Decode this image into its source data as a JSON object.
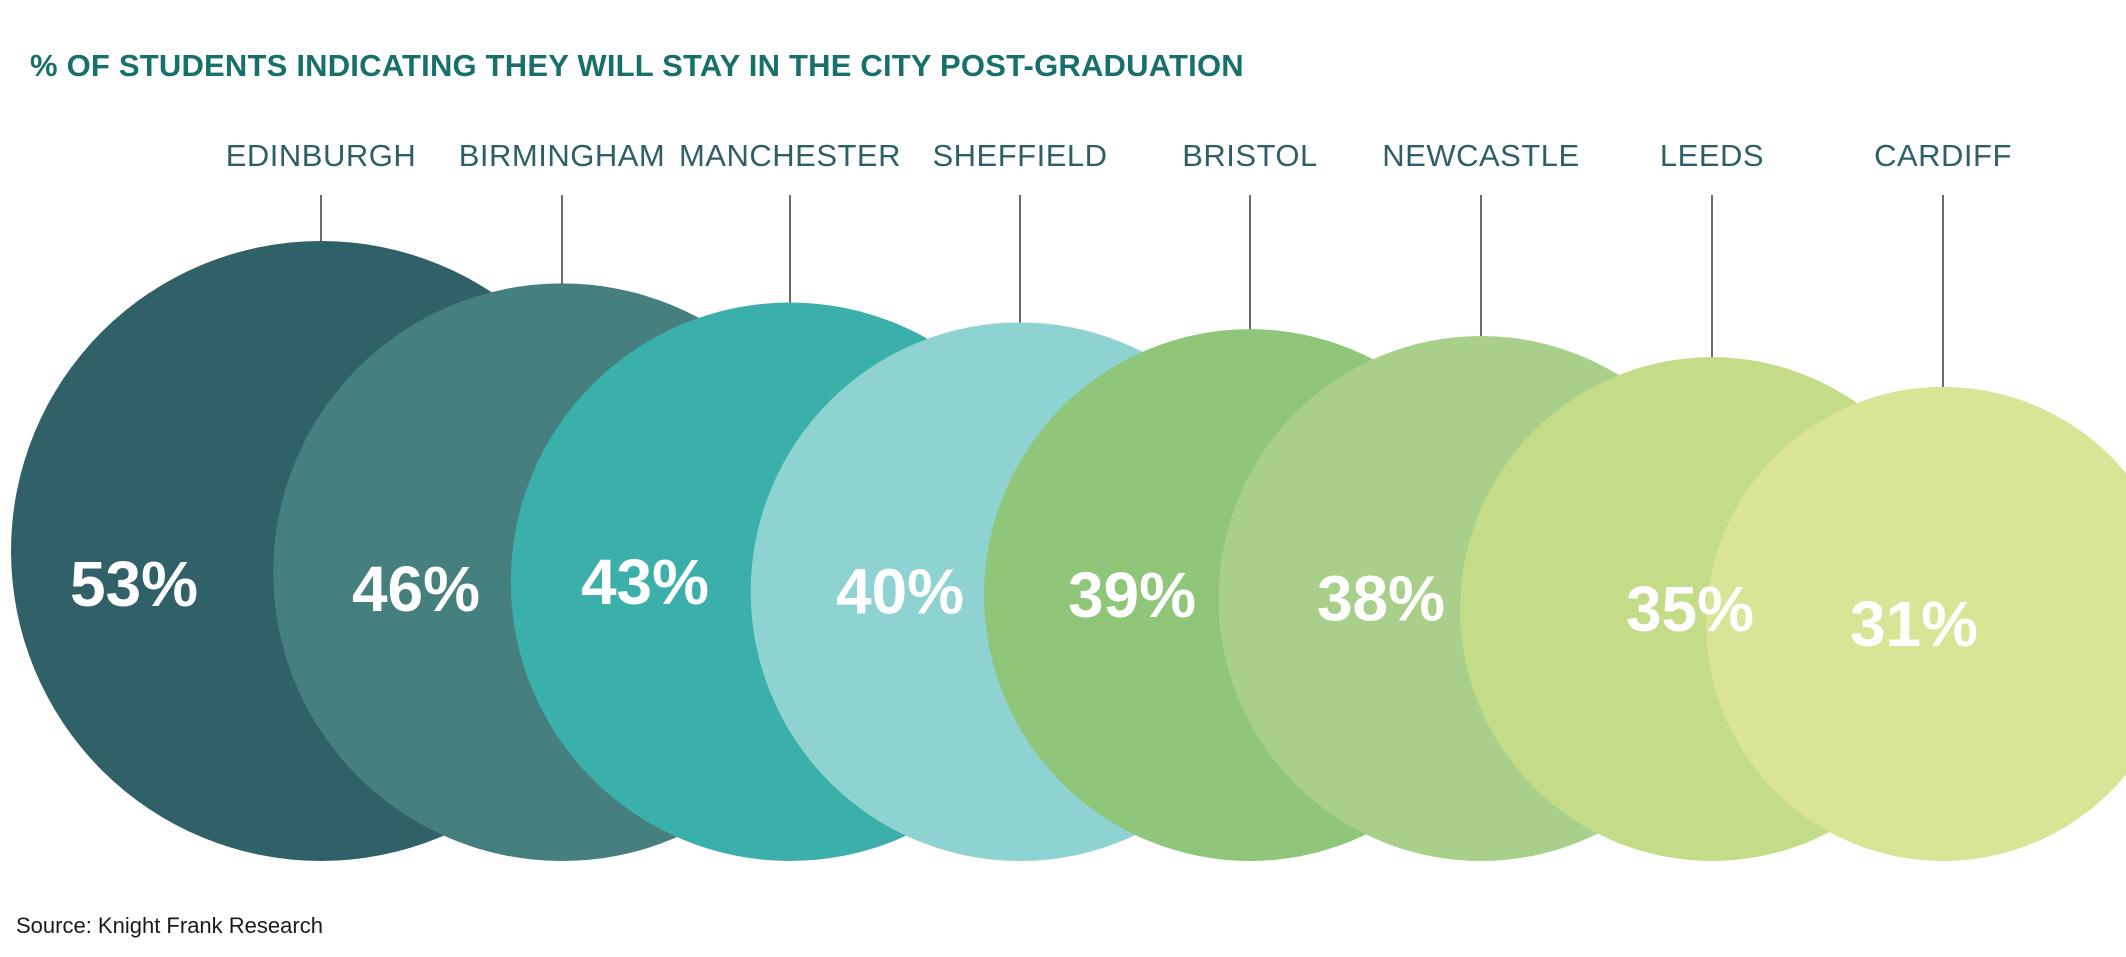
{
  "colors": {
    "title": "#17706C",
    "label": "#2F5F66",
    "leader_line": "#3A3A3A",
    "source": "#1A1A1A",
    "value_text": "#FFFFFF"
  },
  "chart_data": {
    "type": "bubble",
    "title": "% OF STUDENTS INDICATING THEY WILL STAY IN THE CITY POST-GRADUATION",
    "value_suffix": "%",
    "categories": [
      "EDINBURGH",
      "BIRMINGHAM",
      "MANCHESTER",
      "SHEFFIELD",
      "BRISTOL",
      "NEWCASTLE",
      "LEEDS",
      "CARDIFF"
    ],
    "values": [
      53,
      46,
      43,
      40,
      39,
      38,
      35,
      31
    ],
    "value_labels": [
      "53%",
      "46%",
      "43%",
      "40%",
      "39%",
      "38%",
      "35%",
      "31%"
    ],
    "bubble_colors": [
      "#306068",
      "#45807E",
      "#3BAFA9",
      "#8ED3D1",
      "#90C679",
      "#A9D08A",
      "#C4DC88",
      "#D9E496"
    ],
    "source": "Source: Knight Frank Research"
  }
}
